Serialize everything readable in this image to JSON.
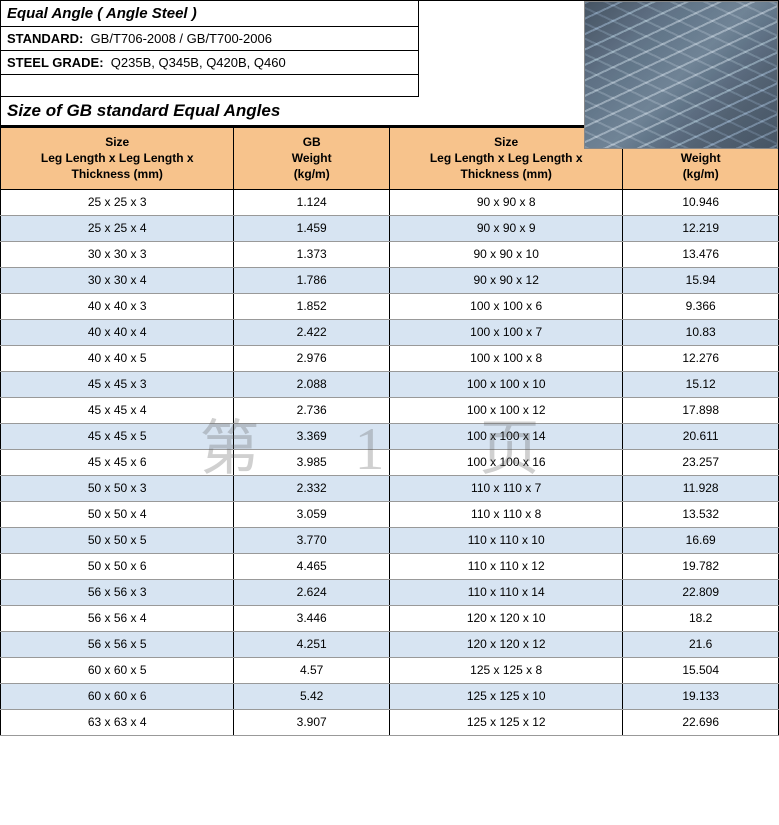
{
  "header": {
    "title": "Equal Angle ( Angle Steel )",
    "standard_label": "STANDARD:",
    "standard_value": "GB/T706-2008 / GB/T700-2006",
    "grade_label": "STEEL GRADE:",
    "grade_value": "Q235B, Q345B, Q420B, Q460"
  },
  "section_title": "Size of GB standard Equal Angles",
  "columns": {
    "size_line1": "Size",
    "size_line2": "Leg Length x Leg Length x",
    "size_line3": "Thickness (mm)",
    "wt_line1": "GB",
    "wt_line2": "Weight",
    "wt_line3": "(kg/m)"
  },
  "table": {
    "header_bg": "#f7c38c",
    "alt_row_bg": "#d7e4f2",
    "border_color": "#000000",
    "rows": [
      {
        "s1": "25 x 25 x 3",
        "w1": "1.124",
        "s2": "90 x 90 x 8",
        "w2": "10.946"
      },
      {
        "s1": "25 x 25 x 4",
        "w1": "1.459",
        "s2": "90 x 90 x 9",
        "w2": "12.219"
      },
      {
        "s1": "30 x 30 x 3",
        "w1": "1.373",
        "s2": "90 x 90 x 10",
        "w2": "13.476"
      },
      {
        "s1": "30 x 30 x 4",
        "w1": "1.786",
        "s2": "90 x 90 x 12",
        "w2": "15.94"
      },
      {
        "s1": "40 x 40 x 3",
        "w1": "1.852",
        "s2": "100 x 100 x 6",
        "w2": "9.366"
      },
      {
        "s1": "40 x 40 x 4",
        "w1": "2.422",
        "s2": "100 x 100 x 7",
        "w2": "10.83"
      },
      {
        "s1": "40 x 40 x 5",
        "w1": "2.976",
        "s2": "100 x 100 x 8",
        "w2": "12.276"
      },
      {
        "s1": "45 x 45 x 3",
        "w1": "2.088",
        "s2": "100 x 100 x 10",
        "w2": "15.12"
      },
      {
        "s1": "45 x 45 x 4",
        "w1": "2.736",
        "s2": "100 x 100 x 12",
        "w2": "17.898"
      },
      {
        "s1": "45 x 45 x 5",
        "w1": "3.369",
        "s2": "100 x 100 x 14",
        "w2": "20.611"
      },
      {
        "s1": "45 x 45 x 6",
        "w1": "3.985",
        "s2": "100 x 100 x 16",
        "w2": "23.257"
      },
      {
        "s1": "50 x 50 x 3",
        "w1": "2.332",
        "s2": "110 x 110 x 7",
        "w2": "11.928"
      },
      {
        "s1": "50 x 50 x 4",
        "w1": "3.059",
        "s2": "110 x 110 x 8",
        "w2": "13.532"
      },
      {
        "s1": "50 x 50 x 5",
        "w1": "3.770",
        "s2": "110 x 110 x 10",
        "w2": "16.69"
      },
      {
        "s1": "50 x 50 x 6",
        "w1": "4.465",
        "s2": "110 x 110 x 12",
        "w2": "19.782"
      },
      {
        "s1": "56 x 56 x 3",
        "w1": "2.624",
        "s2": "110 x 110 x 14",
        "w2": "22.809"
      },
      {
        "s1": "56 x 56 x 4",
        "w1": "3.446",
        "s2": "120 x 120 x 10",
        "w2": "18.2"
      },
      {
        "s1": "56 x 56 x 5",
        "w1": "4.251",
        "s2": "120 x 120 x 12",
        "w2": "21.6"
      },
      {
        "s1": "60 x 60 x 5",
        "w1": "4.57",
        "s2": "125 x 125 x 8",
        "w2": "15.504"
      },
      {
        "s1": "60 x 60 x 6",
        "w1": "5.42",
        "s2": "125 x 125 x 10",
        "w2": "19.133"
      },
      {
        "s1": "63 x 63 x 4",
        "w1": "3.907",
        "s2": "125 x 125 x 12",
        "w2": "22.696"
      }
    ]
  },
  "watermark": "第 1 页"
}
